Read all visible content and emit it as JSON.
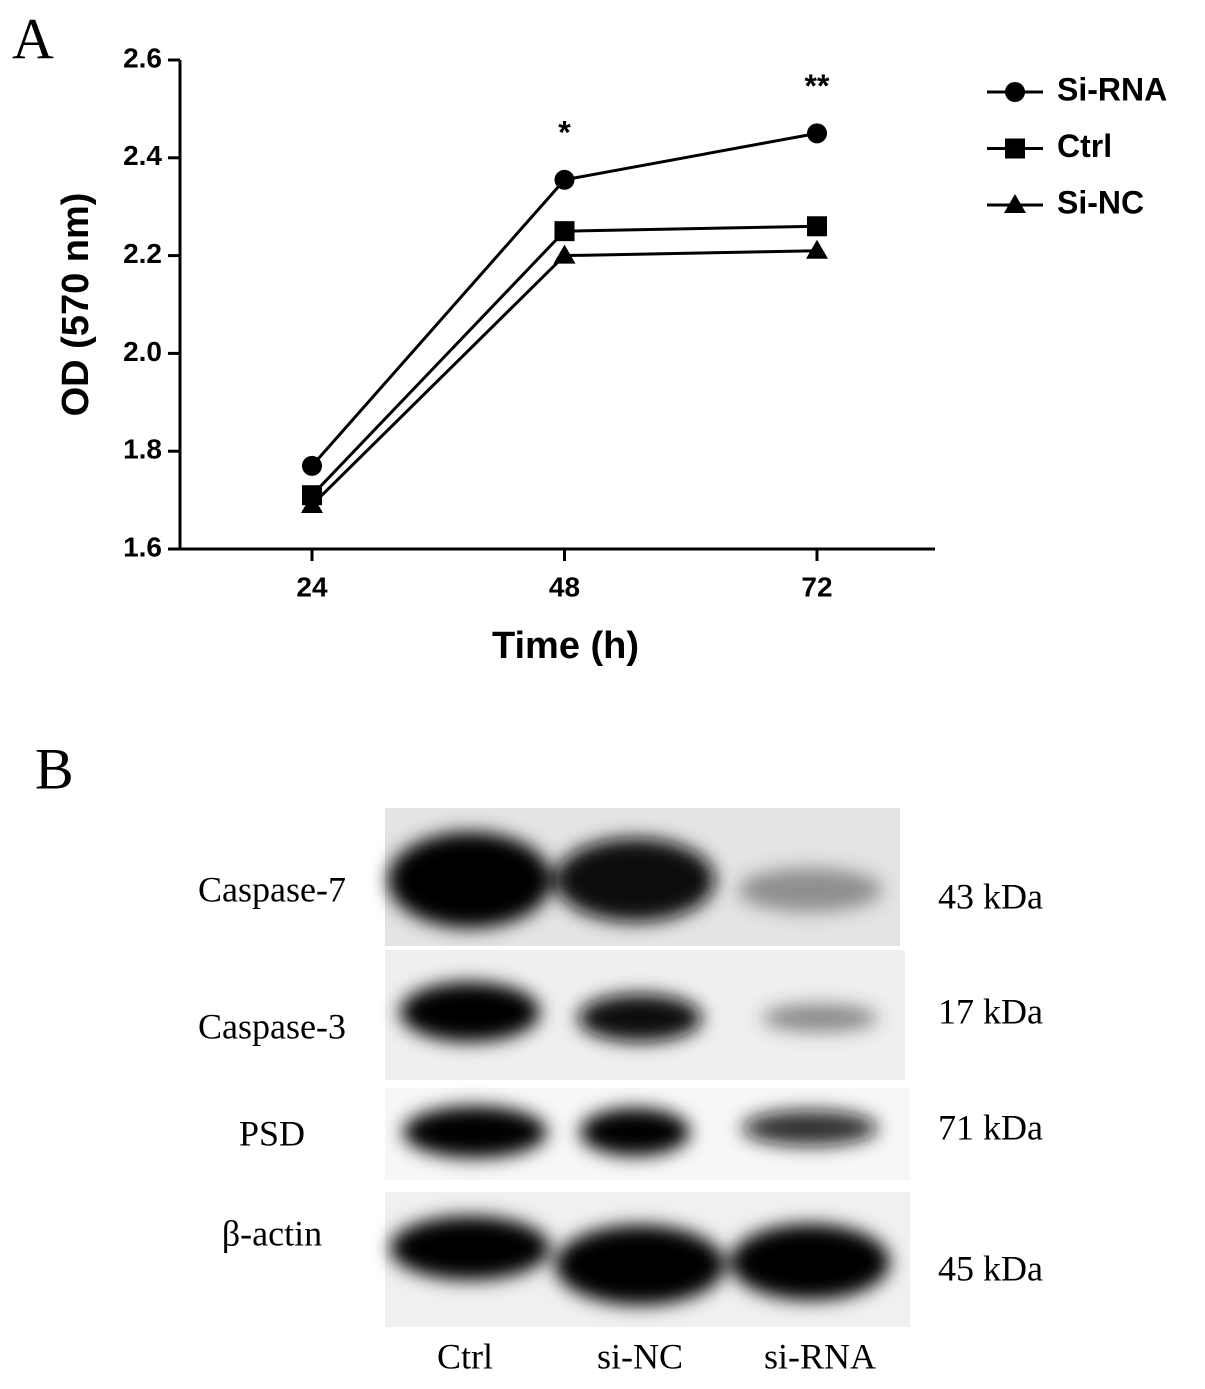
{
  "panel_a": {
    "label": "A"
  },
  "chart_data": {
    "type": "line",
    "x_label": "Time (h)",
    "y_label": "OD (570 nm)",
    "categories": [
      "24",
      "48",
      "72"
    ],
    "series": [
      {
        "name": "Si-RNA",
        "color": "#000000",
        "marker": "circle",
        "values": [
          1.77,
          2.355,
          2.45
        ],
        "significance": [
          null,
          "*",
          "**"
        ]
      },
      {
        "name": "Ctrl",
        "color": "#000000",
        "marker": "square",
        "values": [
          1.71,
          2.25,
          2.26
        ]
      },
      {
        "name": "Si-NC",
        "color": "#000000",
        "marker": "triangle",
        "values": [
          1.69,
          2.2,
          2.21
        ]
      }
    ],
    "ylim": [
      1.6,
      2.6
    ],
    "yticks": [
      1.6,
      1.8,
      {
        "value": 2,
        "label": "2.0"
      },
      2.2,
      2.4,
      2.6
    ],
    "grid": false,
    "legend": "right"
  },
  "panel_b": {
    "label": "B",
    "rows": [
      {
        "protein": "Caspase-7",
        "size": "43 kDa"
      },
      {
        "protein": "Caspase-3",
        "size": "17 kDa"
      },
      {
        "protein": "PSD",
        "size": "71 kDa"
      },
      {
        "protein": "β-actin",
        "size": "45 kDa"
      }
    ],
    "lanes": [
      "Ctrl",
      "si-NC",
      "si-RNA"
    ]
  }
}
